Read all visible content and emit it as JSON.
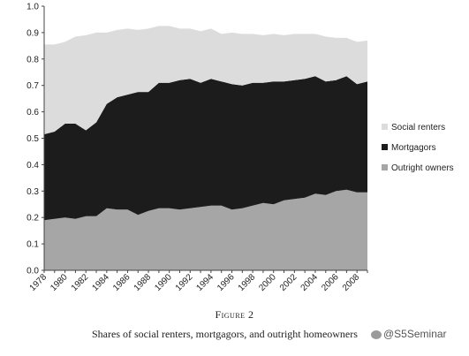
{
  "chart_data": {
    "type": "area",
    "stacked": true,
    "x": [
      1978,
      1979,
      1980,
      1981,
      1982,
      1983,
      1984,
      1985,
      1986,
      1987,
      1988,
      1989,
      1990,
      1991,
      1992,
      1993,
      1994,
      1995,
      1996,
      1997,
      1998,
      1999,
      2000,
      2001,
      2002,
      2003,
      2004,
      2005,
      2006,
      2007,
      2008,
      2009
    ],
    "x_tick_labels": [
      "1978",
      "1980",
      "1982",
      "1984",
      "1986",
      "1988",
      "1990",
      "1992",
      "1994",
      "1996",
      "1998",
      "2000",
      "2002",
      "2004",
      "2006",
      "2008"
    ],
    "y_tick_labels": [
      "0.0",
      "0.1",
      "0.2",
      "0.3",
      "0.4",
      "0.5",
      "0.6",
      "0.7",
      "0.8",
      "0.9",
      "1.0"
    ],
    "ylim": [
      0,
      1.0
    ],
    "series": [
      {
        "name": "Outright owners",
        "color": "#a6a6a6",
        "values": [
          0.19,
          0.195,
          0.2,
          0.195,
          0.205,
          0.205,
          0.235,
          0.23,
          0.23,
          0.21,
          0.225,
          0.235,
          0.235,
          0.23,
          0.235,
          0.24,
          0.245,
          0.245,
          0.23,
          0.235,
          0.245,
          0.255,
          0.25,
          0.265,
          0.27,
          0.275,
          0.29,
          0.285,
          0.3,
          0.305,
          0.295,
          0.295
        ]
      },
      {
        "name": "Mortgagors",
        "color": "#1c1c1c",
        "values": [
          0.325,
          0.33,
          0.355,
          0.36,
          0.325,
          0.355,
          0.395,
          0.425,
          0.435,
          0.465,
          0.45,
          0.475,
          0.475,
          0.49,
          0.49,
          0.47,
          0.48,
          0.47,
          0.475,
          0.465,
          0.465,
          0.455,
          0.465,
          0.45,
          0.45,
          0.45,
          0.445,
          0.43,
          0.42,
          0.43,
          0.41,
          0.42
        ]
      },
      {
        "name": "Social renters",
        "color": "#dcdcdc",
        "values": [
          0.34,
          0.33,
          0.31,
          0.33,
          0.36,
          0.34,
          0.27,
          0.255,
          0.25,
          0.235,
          0.24,
          0.215,
          0.215,
          0.195,
          0.19,
          0.195,
          0.19,
          0.18,
          0.195,
          0.195,
          0.185,
          0.18,
          0.18,
          0.175,
          0.175,
          0.17,
          0.16,
          0.17,
          0.16,
          0.145,
          0.16,
          0.155
        ]
      }
    ],
    "legend_position": "right",
    "grid": false
  },
  "figure": {
    "label": "Figure 2",
    "title": "Shares of social renters, mortgagors, and outright homeowners"
  },
  "watermark": {
    "text": "@S5Seminar"
  }
}
